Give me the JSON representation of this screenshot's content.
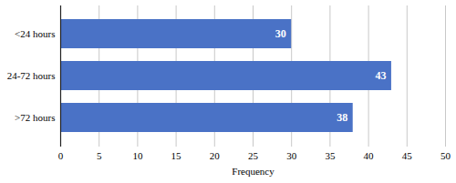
{
  "chart_data": {
    "type": "bar",
    "orientation": "horizontal",
    "categories": [
      "<24 hours",
      "24-72 hours",
      ">72 hours"
    ],
    "values": [
      30,
      43,
      38
    ],
    "color": "#4a72c6",
    "xlabel": "Frequency",
    "xlim": [
      0,
      50
    ],
    "xticks": [
      0,
      5,
      10,
      15,
      20,
      25,
      30,
      35,
      40,
      45,
      50
    ],
    "grid": true,
    "data_labels": true
  }
}
